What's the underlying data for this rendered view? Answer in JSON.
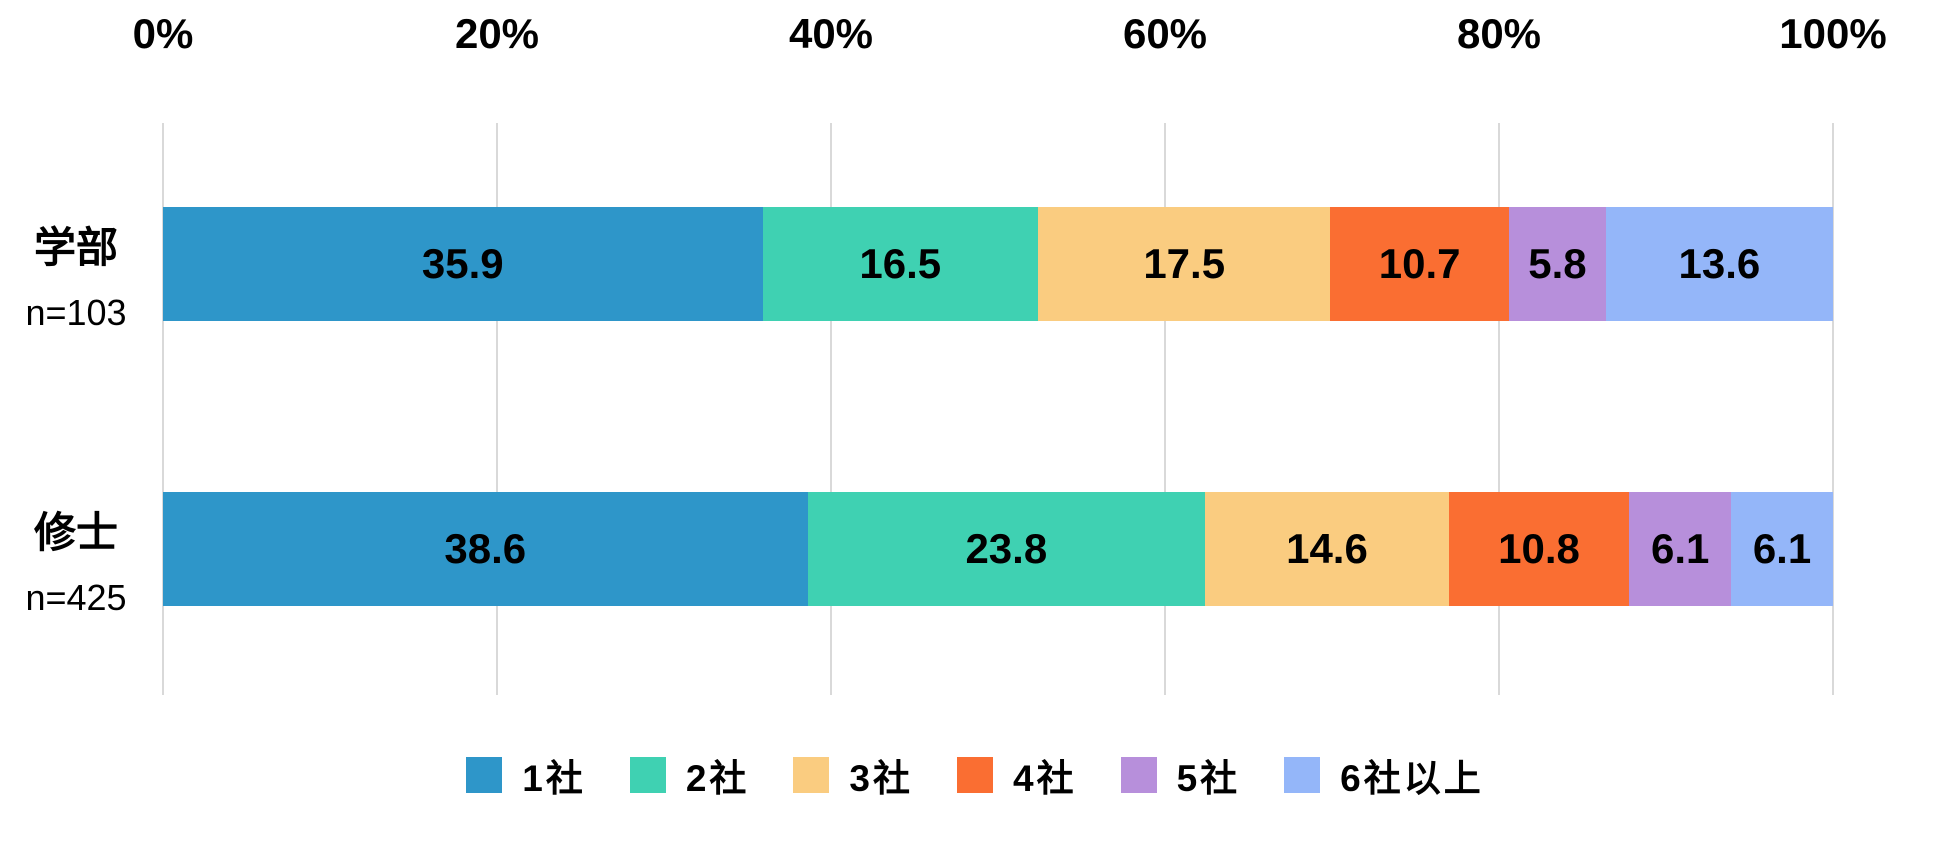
{
  "chart_data": {
    "type": "bar",
    "orientation": "horizontal",
    "stacked": true,
    "title": "",
    "xlabel": "",
    "ylabel": "",
    "xlim": [
      0,
      100
    ],
    "x_tick_labels": [
      "0%",
      "20%",
      "40%",
      "60%",
      "80%",
      "100%"
    ],
    "x_tick_values": [
      0,
      20,
      40,
      60,
      80,
      100
    ],
    "grid": {
      "vertical": true,
      "horizontal": false
    },
    "legend_position": "bottom",
    "value_format": "one-decimal",
    "categories": [
      {
        "label": "学部",
        "n_label": "n=103"
      },
      {
        "label": "修士",
        "n_label": "n=425"
      }
    ],
    "series": [
      {
        "name": "1社",
        "color": "#2E96C9",
        "values": [
          35.9,
          38.6
        ]
      },
      {
        "name": "2社",
        "color": "#3FD1B2",
        "values": [
          16.5,
          23.8
        ]
      },
      {
        "name": "3社",
        "color": "#FACC80",
        "values": [
          17.5,
          14.6
        ]
      },
      {
        "name": "4社",
        "color": "#FA6E32",
        "values": [
          10.7,
          10.8
        ]
      },
      {
        "name": "5社",
        "color": "#B78FDB",
        "values": [
          5.8,
          6.1
        ]
      },
      {
        "name": "6社以上",
        "color": "#94B6F9",
        "values": [
          13.6,
          6.1
        ]
      }
    ]
  },
  "colors": {
    "background": "#FFFFFF",
    "gridline": "#D9D9D9",
    "value_label": "#000000",
    "tick_label": "#000000"
  }
}
